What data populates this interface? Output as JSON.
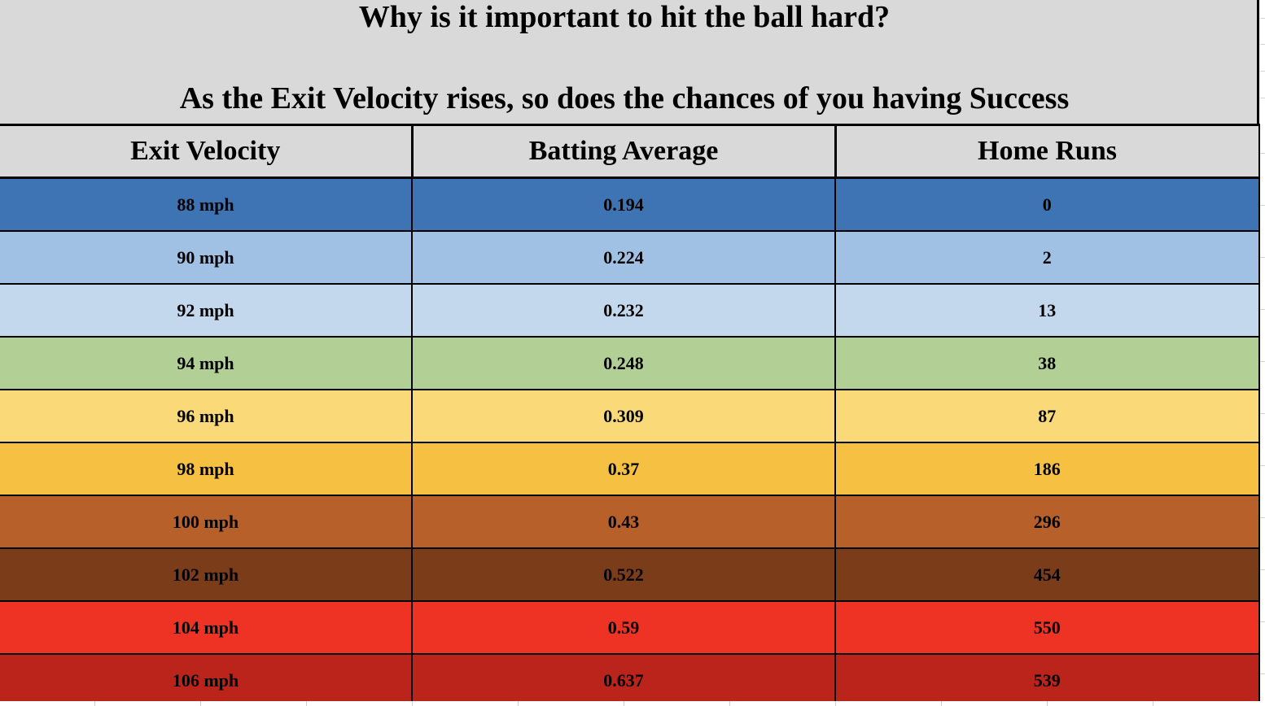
{
  "title": {
    "line1": "Why is it important to hit the ball hard?",
    "line2": "As the Exit Velocity rises, so does the chances of you having Success"
  },
  "table": {
    "headers": [
      "Exit Velocity",
      "Batting Average",
      "Home Runs"
    ],
    "rows": [
      {
        "velocity": "88 mph",
        "avg": "0.194",
        "hr": "0",
        "color": "#3e74b3"
      },
      {
        "velocity": "90 mph",
        "avg": "0.224",
        "hr": "2",
        "color": "#a1c1e4"
      },
      {
        "velocity": "92 mph",
        "avg": "0.232",
        "hr": "13",
        "color": "#c3d7ed"
      },
      {
        "velocity": "94 mph",
        "avg": "0.248",
        "hr": "38",
        "color": "#b2d096"
      },
      {
        "velocity": "96 mph",
        "avg": "0.309",
        "hr": "87",
        "color": "#f9d978"
      },
      {
        "velocity": "98 mph",
        "avg": "0.37",
        "hr": "186",
        "color": "#f6c043"
      },
      {
        "velocity": "100 mph",
        "avg": "0.43",
        "hr": "296",
        "color": "#b8602a"
      },
      {
        "velocity": "102 mph",
        "avg": "0.522",
        "hr": "454",
        "color": "#7b3c19"
      },
      {
        "velocity": "104 mph",
        "avg": "0.59",
        "hr": "550",
        "color": "#ee3325"
      },
      {
        "velocity": "106 mph",
        "avg": "0.637",
        "hr": "539",
        "color": "#bb241b"
      }
    ]
  }
}
